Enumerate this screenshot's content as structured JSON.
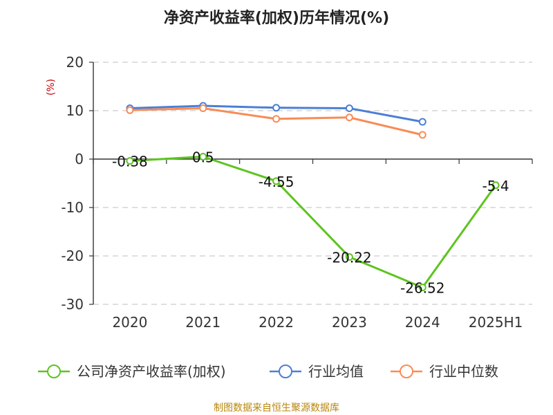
{
  "chart_data": {
    "type": "line",
    "title": "净资产收益率(加权)历年情况(%)",
    "ylabel": "(%)",
    "categories": [
      "2020",
      "2021",
      "2022",
      "2023",
      "2024",
      "2025H1"
    ],
    "ylim": [
      -30,
      20
    ],
    "yticks": [
      20,
      10,
      0,
      -10,
      -20,
      -30
    ],
    "grid": true,
    "legend_position": "bottom",
    "series": [
      {
        "name": "公司净资产收益率(加权)",
        "color": "#5cc41f",
        "values": [
          -0.38,
          0.5,
          -4.55,
          -20.22,
          -26.52,
          -5.4
        ],
        "labels": [
          "-0.38",
          "0.5",
          "-4.55",
          "-20.22",
          "-26.52",
          "-5.4"
        ],
        "show_labels": true
      },
      {
        "name": "行业均值",
        "color": "#4a7fd6",
        "values": [
          10.5,
          11.0,
          10.6,
          10.5,
          7.7,
          null
        ],
        "show_labels": false
      },
      {
        "name": "行业中位数",
        "color": "#f98b55",
        "values": [
          10.1,
          10.5,
          8.3,
          8.6,
          5.0,
          null
        ],
        "show_labels": false
      }
    ],
    "source": "制图数据来自恒生聚源数据库"
  }
}
